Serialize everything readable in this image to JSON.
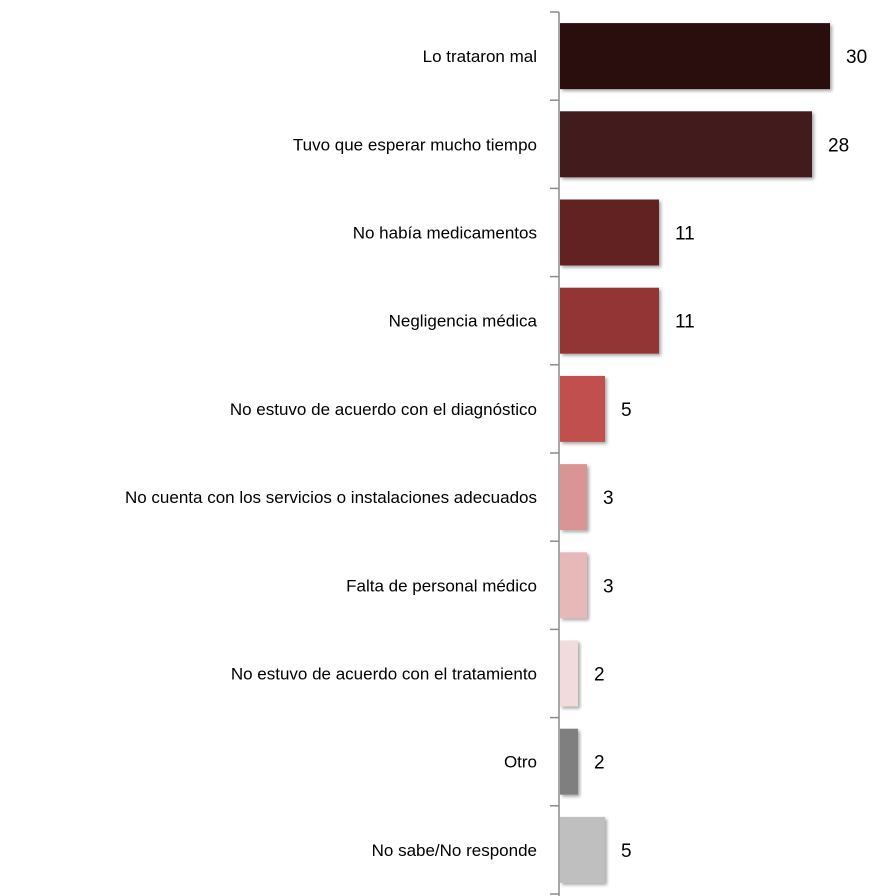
{
  "chart_data": {
    "type": "bar",
    "orientation": "horizontal",
    "categories": [
      "Lo trataron mal",
      "Tuvo que esperar mucho tiempo",
      "No había medicamentos",
      "Negligencia médica",
      "No estuvo de acuerdo con el diagnóstico",
      "No cuenta con los servicios o instalaciones adecuados",
      "Falta de personal médico",
      "No estuvo de acuerdo con el tratamiento",
      "Otro",
      "No sabe/No responde"
    ],
    "values": [
      30,
      28,
      11,
      11,
      5,
      3,
      3,
      2,
      2,
      5
    ],
    "data_labels": [
      "30",
      "28",
      "11",
      "11",
      "5",
      "3",
      "3",
      "2",
      "2",
      "5"
    ],
    "bar_colors": [
      "#2a0f10",
      "#431a1b",
      "#622324",
      "#943536",
      "#c0504d",
      "#d99594",
      "#e6b9b8",
      "#f2dcdb",
      "#7f7f7f",
      "#bfbfbf"
    ],
    "xlim": [
      0,
      30
    ],
    "grid": false,
    "legend": "none"
  }
}
